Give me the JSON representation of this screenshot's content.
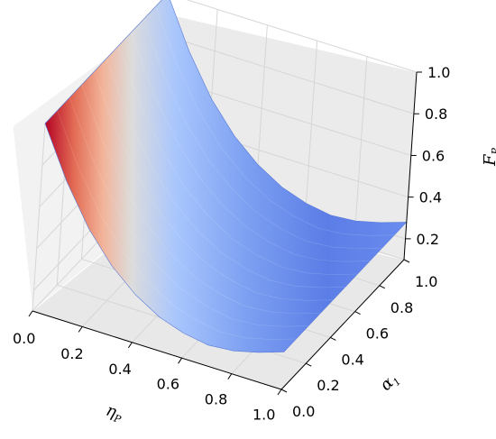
{
  "chart_data": {
    "type": "surface3d",
    "title": "",
    "xlabel": {
      "base": "η",
      "sub": "P"
    },
    "ylabel": {
      "base": "α",
      "sub": "1"
    },
    "zlabel": {
      "base": "F",
      "sub": "P"
    },
    "xlim": [
      0,
      1
    ],
    "ylim": [
      0,
      1
    ],
    "zlim": [
      0.1,
      1.0
    ],
    "x_ticks": [
      "0.0",
      "0.2",
      "0.4",
      "0.6",
      "0.8",
      "1.0"
    ],
    "y_ticks": [
      "0.0",
      "0.2",
      "0.4",
      "0.6",
      "0.8",
      "1.0"
    ],
    "z_ticks": [
      "0.2",
      "0.4",
      "0.6",
      "0.8",
      "1.0"
    ],
    "colormap": "coolwarm",
    "grid": true,
    "surface_profile": {
      "x": [
        0.0,
        0.1,
        0.2,
        0.3,
        0.4,
        0.5,
        0.6,
        0.7,
        0.8,
        0.9,
        1.0
      ],
      "z_at_alpha1_0": [
        1.0,
        0.76,
        0.57,
        0.43,
        0.33,
        0.26,
        0.22,
        0.2,
        0.21,
        0.24,
        0.28
      ],
      "z_at_alpha1_1": [
        1.0,
        0.76,
        0.57,
        0.43,
        0.33,
        0.26,
        0.22,
        0.2,
        0.21,
        0.24,
        0.28
      ]
    }
  }
}
